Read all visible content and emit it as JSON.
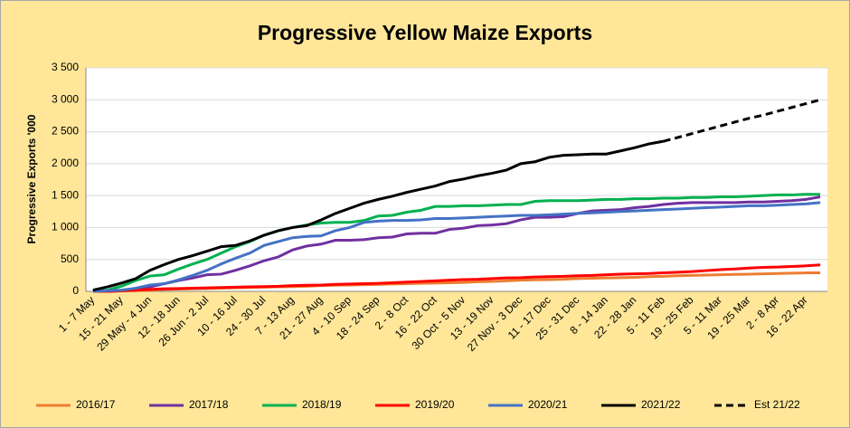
{
  "chart_data": {
    "type": "line",
    "title": "Progressive Yellow Maize Exports",
    "y_label": "Progressive Exports '000",
    "categories": [
      "1 - 7 May",
      null,
      "15 - 21 May",
      null,
      "29 May - 4 Jun",
      null,
      "12 - 18 Jun",
      null,
      "26 Jun - 2 Jul",
      null,
      "10 - 16 Jul",
      null,
      "24 - 30 Jul",
      null,
      "7 - 13 Aug",
      null,
      "21 - 27 Aug",
      null,
      "4 - 10 Sep",
      null,
      "18 - 24 Sep",
      null,
      "2 - 8 Oct",
      null,
      "16 - 22 Oct",
      null,
      "30 Oct - 5 Nov",
      null,
      "13 - 19 Nov",
      null,
      "27 Nov - 3 Dec",
      null,
      "11 - 17 Dec",
      null,
      "25 - 31 Dec",
      null,
      "8 - 14 Jan",
      null,
      "22 - 28 Jan",
      null,
      "5 - 11 Feb",
      null,
      "19 - 25 Feb",
      null,
      "5 - 11 Mar",
      null,
      "19 - 25 Mar",
      null,
      "2 - 8 Apr",
      null,
      "16 - 22 Apr",
      null
    ],
    "series": [
      {
        "name": "2016/17",
        "color": "#ED7D31",
        "dash": false,
        "values": [
          0,
          0,
          5,
          10,
          20,
          30,
          35,
          40,
          45,
          50,
          55,
          60,
          65,
          70,
          75,
          80,
          90,
          95,
          100,
          105,
          110,
          115,
          120,
          125,
          130,
          135,
          140,
          150,
          155,
          165,
          175,
          180,
          185,
          190,
          200,
          205,
          210,
          215,
          220,
          230,
          235,
          245,
          250,
          255,
          260,
          265,
          270,
          275,
          280,
          285,
          290,
          290
        ]
      },
      {
        "name": "2017/18",
        "color": "#7030A0",
        "dash": false,
        "values": [
          0,
          0,
          10,
          30,
          70,
          120,
          170,
          210,
          260,
          270,
          330,
          400,
          480,
          540,
          650,
          710,
          740,
          800,
          800,
          810,
          840,
          850,
          900,
          910,
          910,
          970,
          990,
          1030,
          1040,
          1060,
          1120,
          1160,
          1160,
          1170,
          1220,
          1260,
          1270,
          1280,
          1310,
          1330,
          1360,
          1380,
          1390,
          1390,
          1390,
          1390,
          1400,
          1400,
          1410,
          1420,
          1440,
          1480
        ]
      },
      {
        "name": "2018/19",
        "color": "#00B050",
        "dash": false,
        "values": [
          0,
          20,
          80,
          170,
          240,
          260,
          350,
          430,
          500,
          600,
          700,
          780,
          880,
          950,
          1000,
          1040,
          1070,
          1080,
          1080,
          1110,
          1180,
          1190,
          1240,
          1270,
          1330,
          1330,
          1340,
          1340,
          1350,
          1360,
          1360,
          1410,
          1420,
          1420,
          1420,
          1430,
          1440,
          1440,
          1450,
          1450,
          1460,
          1460,
          1470,
          1470,
          1480,
          1480,
          1490,
          1500,
          1510,
          1510,
          1520,
          1520
        ]
      },
      {
        "name": "2019/20",
        "color": "#FF0000",
        "dash": false,
        "values": [
          0,
          0,
          10,
          20,
          30,
          40,
          45,
          50,
          55,
          60,
          65,
          70,
          75,
          80,
          90,
          95,
          100,
          110,
          115,
          120,
          125,
          135,
          145,
          155,
          165,
          175,
          185,
          190,
          200,
          210,
          215,
          225,
          230,
          235,
          245,
          250,
          260,
          270,
          275,
          280,
          290,
          300,
          310,
          325,
          340,
          350,
          365,
          375,
          380,
          390,
          400,
          415
        ]
      },
      {
        "name": "2020/21",
        "color": "#4472C4",
        "dash": false,
        "values": [
          0,
          10,
          20,
          50,
          100,
          120,
          180,
          250,
          330,
          430,
          520,
          600,
          720,
          780,
          840,
          860,
          870,
          950,
          1000,
          1080,
          1100,
          1110,
          1110,
          1120,
          1140,
          1140,
          1150,
          1160,
          1170,
          1180,
          1190,
          1190,
          1200,
          1210,
          1220,
          1230,
          1240,
          1250,
          1260,
          1270,
          1280,
          1290,
          1300,
          1310,
          1320,
          1330,
          1340,
          1340,
          1350,
          1360,
          1370,
          1390
        ]
      },
      {
        "name": "2021/22",
        "color": "#000000",
        "dash": false,
        "values": [
          20,
          70,
          130,
          200,
          330,
          420,
          500,
          560,
          630,
          700,
          720,
          790,
          880,
          950,
          1000,
          1030,
          1120,
          1220,
          1300,
          1380,
          1440,
          1490,
          1550,
          1600,
          1650,
          1720,
          1760,
          1810,
          1850,
          1900,
          2000,
          2030,
          2100,
          2130,
          2140,
          2150,
          2150,
          2200,
          2250,
          2310,
          2350,
          null,
          null,
          null,
          null,
          null,
          null,
          null,
          null,
          null,
          null,
          null
        ]
      },
      {
        "name": "Est 21/22",
        "color": "#000000",
        "dash": true,
        "values": [
          null,
          null,
          null,
          null,
          null,
          null,
          null,
          null,
          null,
          null,
          null,
          null,
          null,
          null,
          null,
          null,
          null,
          null,
          null,
          null,
          null,
          null,
          null,
          null,
          null,
          null,
          null,
          null,
          null,
          null,
          null,
          null,
          null,
          null,
          null,
          null,
          null,
          null,
          null,
          null,
          2350,
          2410,
          2470,
          2530,
          2590,
          2650,
          2710,
          2760,
          2820,
          2880,
          2940,
          3000
        ]
      }
    ],
    "ylim": [
      0,
      3500
    ],
    "yticks": [
      0,
      500,
      {
        "value": 1000,
        "label": "1 000"
      },
      {
        "value": 1500,
        "label": "1 500"
      },
      {
        "value": 2000,
        "label": "2 000"
      },
      {
        "value": 2500,
        "label": "2 500"
      },
      {
        "value": 3000,
        "label": "3 000"
      },
      {
        "value": 3500,
        "label": "3 500"
      }
    ],
    "grid": true,
    "legend": "bottom"
  }
}
